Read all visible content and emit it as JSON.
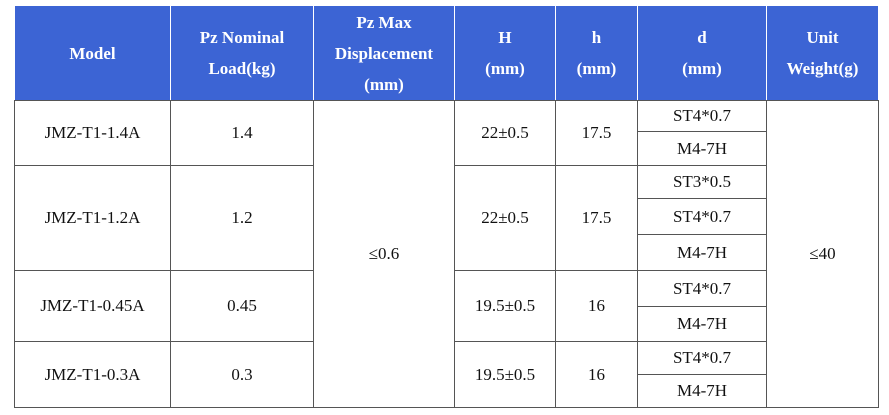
{
  "table": {
    "header": [
      [
        "Model"
      ],
      [
        "Pz Nominal",
        "Load(kg)"
      ],
      [
        "Pz Max",
        "Displacement",
        "(mm)"
      ],
      [
        "H",
        "(mm)"
      ],
      [
        "h",
        "(mm)"
      ],
      [
        "d",
        "(mm)"
      ],
      [
        "Unit",
        "Weight(g)"
      ]
    ],
    "displacement": "≤0.6",
    "weight": "≤40",
    "rows": [
      {
        "model": "JMZ-T1-1.4A",
        "load": "1.4",
        "H": "22±0.5",
        "h": "17.5",
        "d": [
          "ST4*0.7",
          "M4-7H"
        ]
      },
      {
        "model": "JMZ-T1-1.2A",
        "load": "1.2",
        "H": "22±0.5",
        "h": "17.5",
        "d": [
          "ST3*0.5",
          "ST4*0.7",
          "M4-7H"
        ]
      },
      {
        "model": "JMZ-T1-0.45A",
        "load": "0.45",
        "H": "19.5±0.5",
        "h": "16",
        "d": [
          "ST4*0.7",
          "M4-7H"
        ]
      },
      {
        "model": "JMZ-T1-0.3A",
        "load": "0.3",
        "H": "19.5±0.5",
        "h": "16",
        "d": [
          "ST4*0.7",
          "M4-7H"
        ]
      }
    ]
  }
}
